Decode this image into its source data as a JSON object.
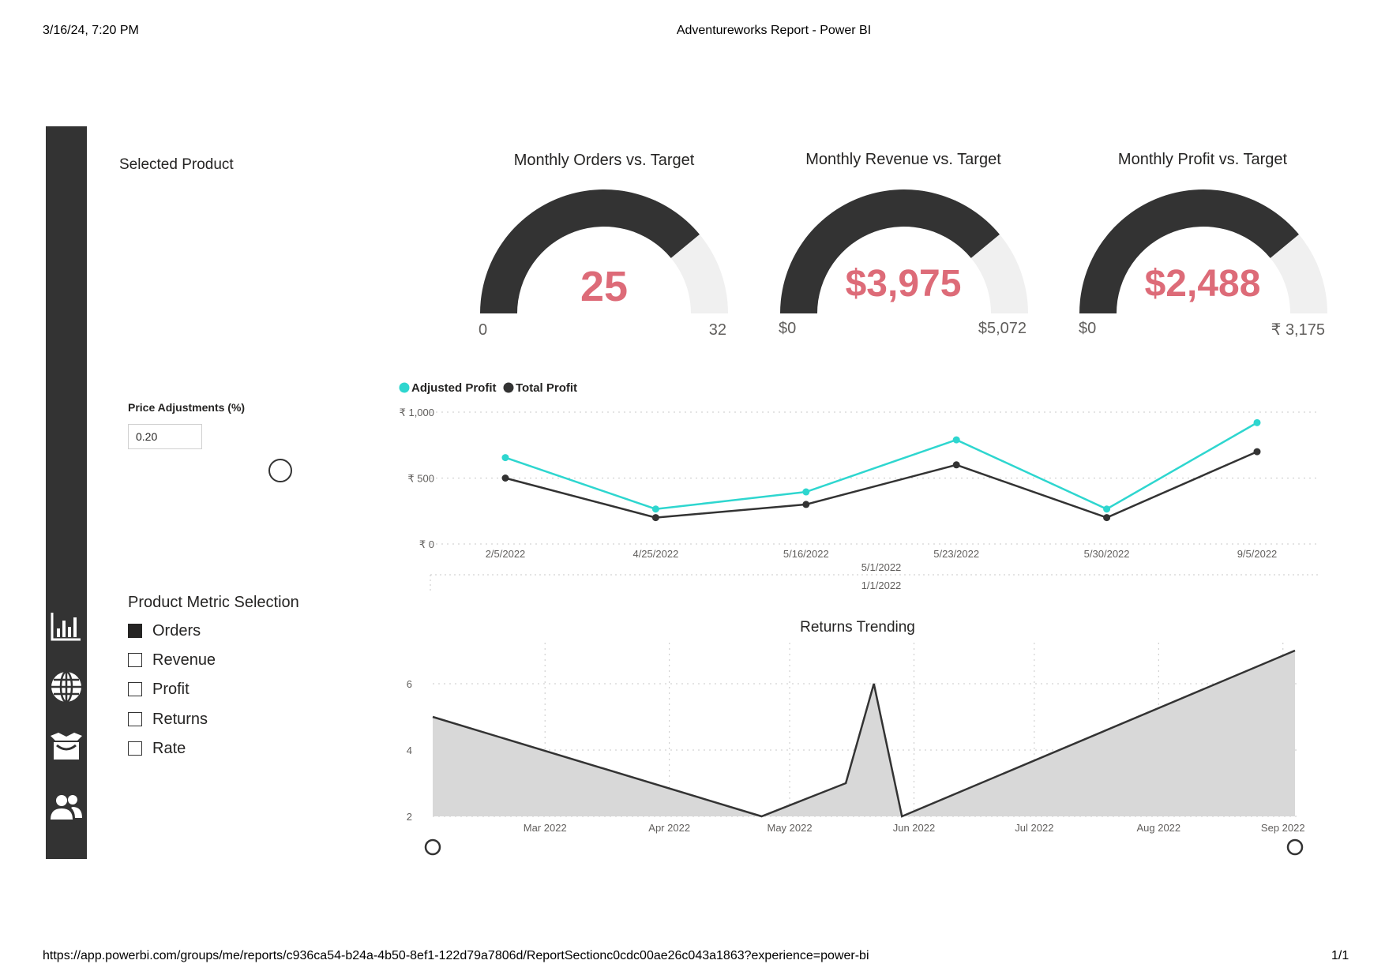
{
  "print_header": {
    "datetime": "3/16/24, 7:20 PM",
    "title": "Adventureworks Report - Power BI"
  },
  "print_footer": {
    "url": "https://app.powerbi.com/groups/me/reports/c936ca54-b24a-4b50-8ef1-122d79a7806d/ReportSectionc0cdc00ae26c043a1863?experience=power-bi",
    "page": "1/1"
  },
  "nav_rail": {
    "icons": [
      "bar-chart-icon",
      "globe-icon",
      "package-icon",
      "users-icon"
    ]
  },
  "selected_product": {
    "title": "Selected Product"
  },
  "price_adjustment": {
    "label": "Price Adjustments (%)",
    "value": "0.20"
  },
  "metric_selection": {
    "title": "Product Metric Selection",
    "options": [
      {
        "label": "Orders",
        "checked": true
      },
      {
        "label": "Revenue",
        "checked": false
      },
      {
        "label": "Profit",
        "checked": false
      },
      {
        "label": "Returns",
        "checked": false
      },
      {
        "label": "Rate",
        "checked": false
      }
    ]
  },
  "gauges": [
    {
      "title": "Monthly Orders vs. Target",
      "value_label": "25",
      "min_label": "0",
      "max_label": "32",
      "fraction": 0.78
    },
    {
      "title": "Monthly Revenue vs. Target",
      "value_label": "$3,975",
      "min_label": "$0",
      "max_label": "$5,072",
      "fraction": 0.78
    },
    {
      "title": "Monthly Profit vs. Target",
      "value_label": "$2,488",
      "min_label": "$0",
      "max_label": "₹ 3,175",
      "fraction": 0.78
    }
  ],
  "colors": {
    "adjusted": "#2ed6cf",
    "total": "#333333",
    "gauge_fill": "#333333",
    "gauge_track": "#f0f0f0",
    "kpi_value": "#dd6b78",
    "area_fill": "#d8d8d8"
  },
  "chart_data": [
    {
      "type": "line",
      "title": "",
      "categories": [
        "2/5/2022",
        "4/25/2022",
        "5/16/2022",
        "5/23/2022",
        "5/30/2022",
        "9/5/2022"
      ],
      "hierarchy_labels": [
        "5/1/2022",
        "1/1/2022"
      ],
      "series": [
        {
          "name": "Adjusted Profit",
          "values": [
            655,
            265,
            395,
            790,
            265,
            920
          ]
        },
        {
          "name": "Total Profit",
          "values": [
            500,
            200,
            300,
            600,
            200,
            700
          ]
        }
      ],
      "yticks": [
        "₹ 0",
        "₹ 500",
        "₹ 1,000"
      ],
      "ylim": [
        0,
        1000
      ],
      "legend_position": "top-left",
      "grid": true
    },
    {
      "type": "area",
      "title": "Returns Trending",
      "x": [
        "2022-02-01",
        "2022-04-24",
        "2022-05-15",
        "2022-05-22",
        "2022-05-29",
        "2022-09-04"
      ],
      "values": [
        5,
        2,
        3,
        6,
        2,
        7
      ],
      "xticks": [
        "Mar 2022",
        "Apr 2022",
        "May 2022",
        "Jun 2022",
        "Jul 2022",
        "Aug 2022",
        "Sep 2022"
      ],
      "xtick_dates": [
        "2022-03-01",
        "2022-04-01",
        "2022-05-01",
        "2022-06-01",
        "2022-07-01",
        "2022-08-01",
        "2022-09-01"
      ],
      "yticks": [
        "2",
        "4",
        "6"
      ],
      "ylim": [
        2,
        7
      ],
      "grid": true
    }
  ]
}
